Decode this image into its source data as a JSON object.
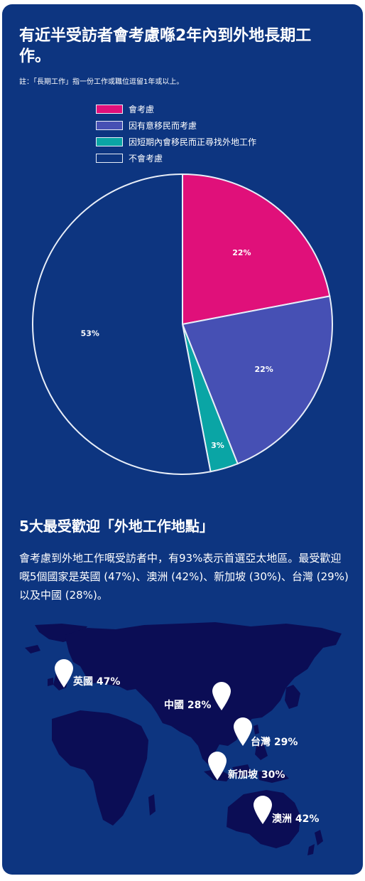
{
  "header": {
    "title": "有近半受訪者會考慮喺2年內到外地長期工作。",
    "note": "註：「長期工作」指一份工作或職位逗留1年或以上。"
  },
  "chart_data": {
    "type": "pie",
    "slices": [
      {
        "label": "會考慮",
        "value": 22,
        "display": "22%",
        "color": "#e0107a"
      },
      {
        "label": "因有意移民而考慮",
        "value": 22,
        "display": "22%",
        "color": "#4650b4"
      },
      {
        "label": "因短期內會移民而正尋找外地工作",
        "value": 3,
        "display": "3%",
        "color": "#0aa5a5"
      },
      {
        "label": "不會考慮",
        "value": 53,
        "display": "53%",
        "color": "#0d3580"
      }
    ],
    "legend_position": "top",
    "border_color": "#e8eef8"
  },
  "section2": {
    "heading": "5大最受歡迎「外地工作地點」",
    "paragraph": "會考慮到外地工作嘅受訪者中，有93%表示首選亞太地區。最受歡迎嘅5個國家是英國 (47%)、澳洲 (42%)、新加坡 (30%)、台灣 (29%) 以及中國 (28%)。"
  },
  "map": {
    "land_color": "#0b0d55",
    "pins": [
      {
        "label": "英國 47%"
      },
      {
        "label": "中國 28%"
      },
      {
        "label": "台灣 29%"
      },
      {
        "label": "新加坡 30%"
      },
      {
        "label": "澳洲 42%"
      }
    ]
  }
}
